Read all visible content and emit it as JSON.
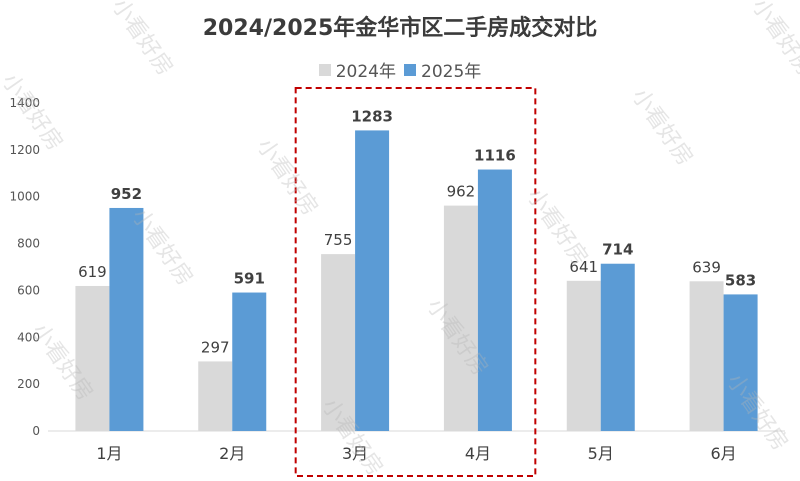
{
  "chart_data": {
    "type": "bar",
    "title": "2024/2025年金华市区二手房成交对比",
    "categories": [
      "1月",
      "2月",
      "3月",
      "4月",
      "5月",
      "6月"
    ],
    "series": [
      {
        "name": "2024年",
        "values": [
          619,
          297,
          755,
          962,
          641,
          639
        ],
        "color": "#d9d9d9"
      },
      {
        "name": "2025年",
        "values": [
          952,
          591,
          1283,
          1116,
          714,
          583
        ],
        "color": "#5b9bd5"
      }
    ],
    "ylim": [
      0,
      1400
    ],
    "yticks": [
      0,
      200,
      400,
      600,
      800,
      1000,
      1200,
      1400
    ],
    "grid": false,
    "legend": "top-center",
    "highlight_categories": [
      "3月",
      "4月"
    ],
    "highlight_color": "#c00000"
  },
  "watermark": "小看好房"
}
